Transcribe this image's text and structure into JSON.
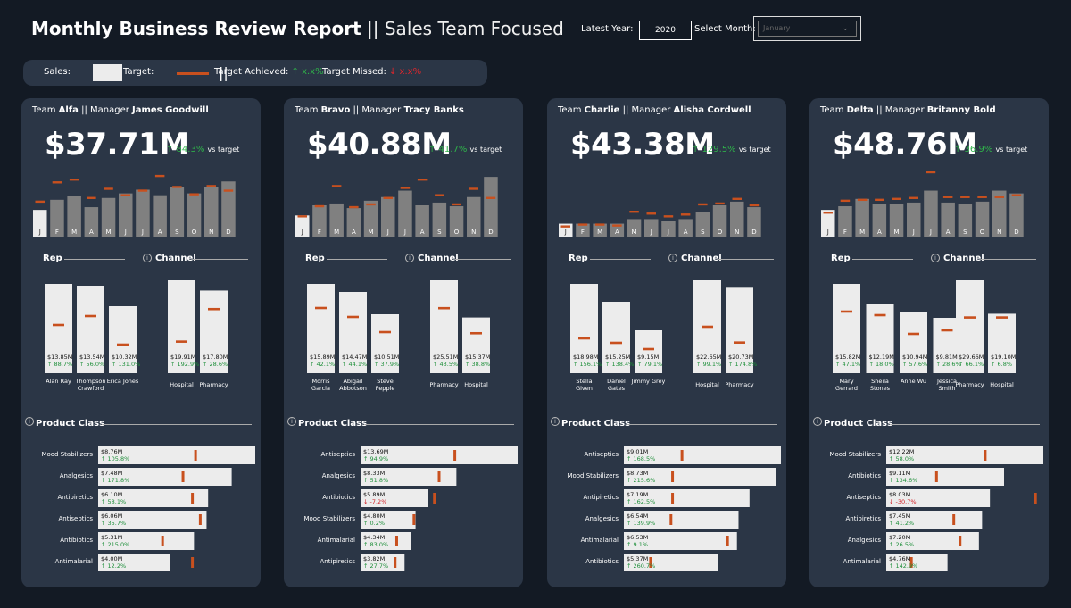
{
  "header": {
    "title_bold": "Monthly Business Review Report",
    "title_light": "|| Sales Team Focused",
    "latest_year_label": "Latest Year:",
    "latest_year_value": "2020",
    "select_month_label": "Select Month:",
    "select_month_value": "January"
  },
  "legend": {
    "sales_label": "Sales:",
    "target_label": "Target:",
    "separator": "||",
    "achieved_label": "Target Achieved:",
    "achieved_sample": "↑ x.x%",
    "missed_label": "Target Missed:",
    "missed_sample": "↓ x.x%"
  },
  "colors": {
    "bg": "#131a24",
    "card": "#2b3646",
    "bar": "#808080",
    "bar_selected": "#ececec",
    "target": "#c8501e",
    "good": "#2fb24a",
    "bad": "#e0262c"
  },
  "section_labels": {
    "rep": "Rep",
    "channel": "Channel",
    "product": "Product Class",
    "vs_target": "vs target",
    "info": "i"
  },
  "month_letters": [
    "J",
    "F",
    "M",
    "A",
    "M",
    "J",
    "J",
    "A",
    "S",
    "O",
    "N",
    "D"
  ],
  "teams": [
    {
      "team_word": "Team",
      "team_name": "Alfa",
      "manager_word": "|| Manager",
      "manager": "James Goodwill",
      "total": "$37.71M",
      "pct": "↑ 84.3%",
      "monthly": {
        "sales": [
          30,
          41,
          45,
          33,
          43,
          48,
          52,
          46,
          55,
          48,
          55,
          61
        ],
        "targets": [
          39,
          60,
          63,
          43,
          53,
          46,
          51,
          67,
          55,
          47,
          56,
          51
        ]
      },
      "reps": [
        {
          "name": "Alan Ray",
          "value": "$13.85M",
          "pct": "↑ 88.7%",
          "bar": 100,
          "target": 54
        },
        {
          "name": "Thompson Crawford",
          "value": "$13.54M",
          "pct": "↑ 56.0%",
          "bar": 98,
          "target": 64
        },
        {
          "name": "Erica Jones",
          "value": "$10.32M",
          "pct": "↑ 131.0%",
          "bar": 75,
          "target": 32
        }
      ],
      "channels": [
        {
          "name": "Hospital",
          "value": "$19.91M",
          "pct": "↑ 192.9%",
          "bar": 100,
          "target": 34
        },
        {
          "name": "Pharmacy",
          "value": "$17.80M",
          "pct": "↑ 28.6%",
          "bar": 89,
          "target": 69
        }
      ],
      "products": [
        {
          "name": "Mood Stabilizers",
          "value": "$8.76M",
          "pct": "↑ 105.8%",
          "bar": 100,
          "target": 62
        },
        {
          "name": "Analgesics",
          "value": "$7.48M",
          "pct": "↑ 171.8%",
          "bar": 85,
          "target": 54
        },
        {
          "name": "Antipiretics",
          "value": "$6.10M",
          "pct": "↑ 58.1%",
          "bar": 70,
          "target": 60
        },
        {
          "name": "Antiseptics",
          "value": "$6.06M",
          "pct": "↑ 35.7%",
          "bar": 69,
          "target": 65
        },
        {
          "name": "Antibiotics",
          "value": "$5.31M",
          "pct": "↑ 215.0%",
          "bar": 61,
          "target": 41
        },
        {
          "name": "Antimalarial",
          "value": "$4.00M",
          "pct": "↑ 12.2%",
          "bar": 46,
          "target": 60
        }
      ]
    },
    {
      "team_word": "Team",
      "team_name": "Bravo",
      "manager_word": "|| Manager",
      "manager": "Tracy Banks",
      "total": "$40.88M",
      "pct": "↑ 41.7%",
      "monthly": {
        "sales": [
          24,
          35,
          37,
          32,
          40,
          44,
          51,
          35,
          38,
          34,
          44,
          66
        ],
        "targets": [
          23,
          34,
          56,
          33,
          36,
          43,
          54,
          63,
          46,
          36,
          53,
          43
        ]
      },
      "reps": [
        {
          "name": "Morris Garcia",
          "value": "$15.89M",
          "pct": "↑ 42.1%",
          "bar": 100,
          "target": 73
        },
        {
          "name": "Abigail Abbotson",
          "value": "$14.47M",
          "pct": "↑ 44.1%",
          "bar": 91,
          "target": 63
        },
        {
          "name": "Steve Pepple",
          "value": "$10.51M",
          "pct": "↑ 37.9%",
          "bar": 66,
          "target": 46
        }
      ],
      "channels": [
        {
          "name": "Pharmacy",
          "value": "$25.51M",
          "pct": "↑ 43.5%",
          "bar": 100,
          "target": 70
        },
        {
          "name": "Hospital",
          "value": "$15.37M",
          "pct": "↑ 38.8%",
          "bar": 60,
          "target": 43
        }
      ],
      "products": [
        {
          "name": "Antiseptics",
          "value": "$13.69M",
          "pct": "↑ 94.9%",
          "bar": 100,
          "target": 60
        },
        {
          "name": "Analgesics",
          "value": "$8.33M",
          "pct": "↑ 51.8%",
          "bar": 61,
          "target": 50
        },
        {
          "name": "Antibiotics",
          "value": "$5.89M",
          "pct": "↓ -7.2%",
          "bar": 43,
          "target": 47
        },
        {
          "name": "Mood Stabilizers",
          "value": "$4.80M",
          "pct": "↑ 0.2%",
          "bar": 35,
          "target": 34
        },
        {
          "name": "Antimalarial",
          "value": "$4.34M",
          "pct": "↑ 83.0%",
          "bar": 32,
          "target": 23
        },
        {
          "name": "Antipiretics",
          "value": "$3.82M",
          "pct": "↑ 27.7%",
          "bar": 28,
          "target": 22
        }
      ]
    },
    {
      "team_word": "Team",
      "team_name": "Charlie",
      "manager_word": "|| Manager",
      "manager": "Alisha Cordwell",
      "total": "$43.38M",
      "pct": "↑ 129.5%",
      "monthly": {
        "sales": [
          15,
          15,
          15,
          15,
          20,
          20,
          18,
          20,
          28,
          35,
          39,
          33
        ],
        "targets": [
          12,
          14,
          14,
          13,
          28,
          26,
          23,
          25,
          36,
          37,
          42,
          35
        ]
      },
      "reps": [
        {
          "name": "Stella Given",
          "value": "$18.98M",
          "pct": "↑ 156.1%",
          "bar": 100,
          "target": 39
        },
        {
          "name": "Daniel Gates",
          "value": "$15.25M",
          "pct": "↑ 138.4%",
          "bar": 80,
          "target": 34
        },
        {
          "name": "Jimmy Grey",
          "value": "$9.15M",
          "pct": "↑ 79.1%",
          "bar": 48,
          "target": 27
        }
      ],
      "channels": [
        {
          "name": "Hospital",
          "value": "$22.65M",
          "pct": "↑ 99.1%",
          "bar": 100,
          "target": 50
        },
        {
          "name": "Pharmacy",
          "value": "$20.73M",
          "pct": "↑ 174.8%",
          "bar": 92,
          "target": 33
        }
      ],
      "products": [
        {
          "name": "Antiseptics",
          "value": "$9.01M",
          "pct": "↑ 168.5%",
          "bar": 100,
          "target": 37
        },
        {
          "name": "Mood Stabilizers",
          "value": "$8.73M",
          "pct": "↑ 215.6%",
          "bar": 97,
          "target": 31
        },
        {
          "name": "Antipiretics",
          "value": "$7.19M",
          "pct": "↑ 162.5%",
          "bar": 80,
          "target": 31
        },
        {
          "name": "Analgesics",
          "value": "$6.54M",
          "pct": "↑ 139.9%",
          "bar": 73,
          "target": 30
        },
        {
          "name": "Antimalarial",
          "value": "$6.53M",
          "pct": "↑ 9.1%",
          "bar": 72,
          "target": 66
        },
        {
          "name": "Antibiotics",
          "value": "$5.37M",
          "pct": "↑ 260.7%",
          "bar": 60,
          "target": 17
        }
      ]
    },
    {
      "team_word": "Team",
      "team_name": "Delta",
      "manager_word": "|| Manager",
      "manager": "Britanny Bold",
      "total": "$48.76M",
      "pct": "↑ 36.9%",
      "monthly": {
        "sales": [
          30,
          34,
          42,
          36,
          36,
          38,
          51,
          38,
          36,
          39,
          51,
          48
        ],
        "targets": [
          27,
          40,
          41,
          41,
          42,
          43,
          71,
          44,
          44,
          44,
          44,
          46
        ]
      },
      "reps": [
        {
          "name": "Mary Gerrard",
          "value": "$15.82M",
          "pct": "↑ 47.1%",
          "bar": 100,
          "target": 69
        },
        {
          "name": "Sheila Stones",
          "value": "$12.19M",
          "pct": "↑ 18.0%",
          "bar": 77,
          "target": 65
        },
        {
          "name": "Anne Wu",
          "value": "$10.94M",
          "pct": "↑ 57.6%",
          "bar": 69,
          "target": 44
        },
        {
          "name": "Jessica Smith",
          "value": "$9.81M",
          "pct": "↑ 28.6%",
          "bar": 62,
          "target": 48
        }
      ],
      "channels": [
        {
          "name": "Pharmacy",
          "value": "$29.66M",
          "pct": "↑ 66.1%",
          "bar": 100,
          "target": 60
        },
        {
          "name": "Hospital",
          "value": "$19.10M",
          "pct": "↑ 6.8%",
          "bar": 64,
          "target": 60
        }
      ],
      "products": [
        {
          "name": "Mood Stabilizers",
          "value": "$12.22M",
          "pct": "↑ 58.0%",
          "bar": 100,
          "target": 63
        },
        {
          "name": "Antibiotics",
          "value": "$9.11M",
          "pct": "↑ 134.6%",
          "bar": 75,
          "target": 32
        },
        {
          "name": "Antiseptics",
          "value": "$8.03M",
          "pct": "↓ -30.7%",
          "bar": 66,
          "target": 95
        },
        {
          "name": "Antipiretics",
          "value": "$7.45M",
          "pct": "↑ 41.2%",
          "bar": 61,
          "target": 43
        },
        {
          "name": "Analgesics",
          "value": "$7.20M",
          "pct": "↑ 26.5%",
          "bar": 59,
          "target": 47
        },
        {
          "name": "Antimalarial",
          "value": "$4.76M",
          "pct": "↑ 142.9%",
          "bar": 39,
          "target": 16
        }
      ]
    }
  ]
}
